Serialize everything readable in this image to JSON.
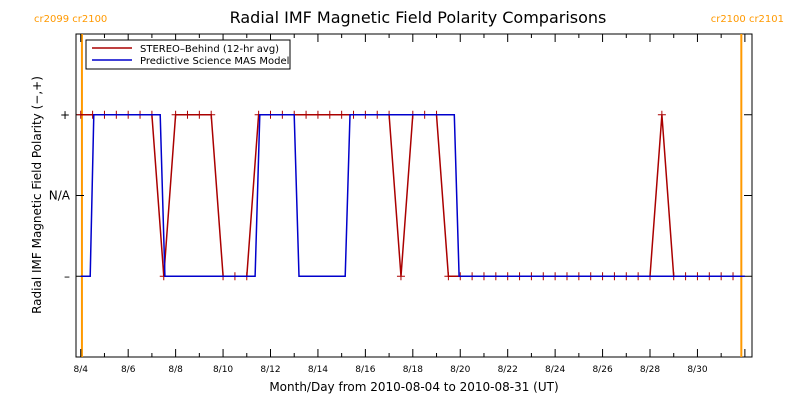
{
  "chart_data": {
    "type": "line",
    "title": "Radial IMF Magnetic Field Polarity Comparisons",
    "xlabel": "Month/Day from 2010-08-04 to 2010-08-31 (UT)",
    "ylabel": "Radial IMF Magnetic Field Polarity (−,+)",
    "xlim": [
      3.8,
      32.3
    ],
    "ylim": [
      -2,
      2
    ],
    "x_unit": "day of August 2010",
    "x_ticks": [
      {
        "value": 4,
        "label": "8/4"
      },
      {
        "value": 6,
        "label": "8/6"
      },
      {
        "value": 8,
        "label": "8/8"
      },
      {
        "value": 10,
        "label": "8/10"
      },
      {
        "value": 12,
        "label": "8/12"
      },
      {
        "value": 14,
        "label": "8/14"
      },
      {
        "value": 16,
        "label": "8/16"
      },
      {
        "value": 18,
        "label": "8/18"
      },
      {
        "value": 20,
        "label": "8/20"
      },
      {
        "value": 22,
        "label": "8/22"
      },
      {
        "value": 24,
        "label": "8/24"
      },
      {
        "value": 26,
        "label": "8/26"
      },
      {
        "value": 28,
        "label": "8/28"
      },
      {
        "value": 30,
        "label": "8/30"
      }
    ],
    "y_ticks": [
      {
        "value": 1,
        "label": "+"
      },
      {
        "value": 0,
        "label": "N/A"
      },
      {
        "value": -1,
        "label": "–"
      }
    ],
    "legend": {
      "placement": "top-left"
    },
    "carrington_markers": [
      {
        "x": 4.05,
        "label": "cr2099 cr2100",
        "side": "left"
      },
      {
        "x": 31.85,
        "label": "cr2100 cr2101",
        "side": "right"
      }
    ],
    "series": [
      {
        "name": "STEREO–Behind (12-hr avg)",
        "color": "#aa0000",
        "markers": "plus",
        "x": [
          4.0,
          4.5,
          5.0,
          5.5,
          6.0,
          6.5,
          7.0,
          7.5,
          8.0,
          8.5,
          9.0,
          9.5,
          10.0,
          10.5,
          11.0,
          11.5,
          12.0,
          12.5,
          13.0,
          13.5,
          14.0,
          14.5,
          15.0,
          15.5,
          16.0,
          16.5,
          17.0,
          17.5,
          18.0,
          18.5,
          19.0,
          19.5,
          20.0,
          20.5,
          21.0,
          21.5,
          22.0,
          22.5,
          23.0,
          23.5,
          24.0,
          24.5,
          25.0,
          25.5,
          26.0,
          26.5,
          27.0,
          27.5,
          28.0,
          28.5,
          29.0,
          29.5,
          30.0,
          30.5,
          31.0,
          31.5
        ],
        "y": [
          1,
          1,
          1,
          1,
          1,
          1,
          1,
          -1,
          1,
          1,
          1,
          1,
          -1,
          -1,
          -1,
          1,
          1,
          1,
          1,
          1,
          1,
          1,
          1,
          1,
          1,
          1,
          1,
          -1,
          1,
          1,
          1,
          -1,
          -1,
          -1,
          -1,
          -1,
          -1,
          -1,
          -1,
          -1,
          -1,
          -1,
          -1,
          -1,
          -1,
          -1,
          -1,
          -1,
          -1,
          1,
          -1,
          -1,
          -1,
          -1,
          -1,
          -1
        ]
      },
      {
        "name": "Predictive Science MAS Model",
        "color": "#0000cc",
        "markers": "none",
        "x": [
          4.0,
          4.4,
          4.55,
          7.35,
          7.55,
          11.35,
          11.55,
          13.0,
          13.2,
          15.15,
          15.35,
          19.75,
          19.95,
          32.0
        ],
        "y": [
          -1,
          -1,
          1,
          1,
          -1,
          -1,
          1,
          1,
          -1,
          -1,
          1,
          1,
          -1,
          -1
        ]
      }
    ]
  }
}
